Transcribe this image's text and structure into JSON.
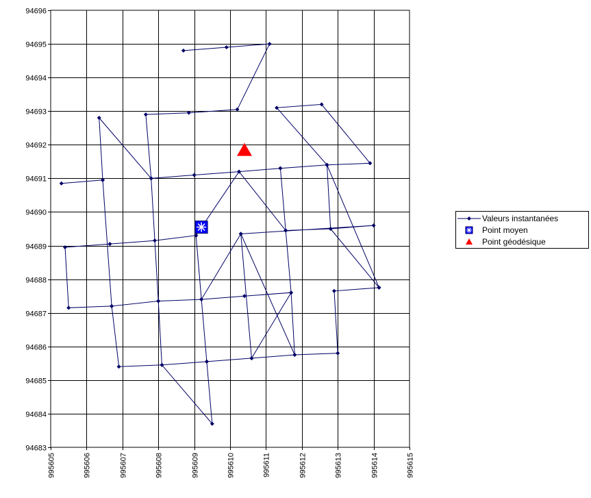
{
  "chart_data": {
    "type": "scatter",
    "title": "",
    "xlabel": "",
    "ylabel": "",
    "xlim": [
      995605,
      995615
    ],
    "ylim": [
      94683,
      94696
    ],
    "grid": true,
    "legend_position": "right",
    "x_ticks": [
      "995605",
      "995606",
      "995607",
      "995608",
      "995609",
      "995610",
      "995611",
      "995612",
      "995613",
      "995614",
      "995615"
    ],
    "y_ticks": [
      "94683",
      "94684",
      "94685",
      "94686",
      "94687",
      "94688",
      "94689",
      "94690",
      "94691",
      "94692",
      "94693",
      "94694",
      "94695",
      "94696"
    ],
    "series": [
      {
        "name": "Valeurs instantanées",
        "color": "#000066",
        "marker": "diamond",
        "points": [
          [
            995608.7,
            94694.8
          ],
          [
            995609.9,
            94694.9
          ],
          [
            995611.1,
            94695.0
          ],
          [
            995610.2,
            94693.05
          ],
          [
            995608.85,
            94692.95
          ],
          [
            995607.65,
            94692.9
          ],
          [
            995607.8,
            94691.0
          ],
          [
            995609.0,
            94691.1
          ],
          [
            995610.25,
            94691.2
          ],
          [
            995611.4,
            94691.3
          ],
          [
            995612.7,
            94691.4
          ],
          [
            995613.9,
            94691.45
          ],
          [
            995612.55,
            94693.2
          ],
          [
            995611.3,
            94693.1
          ],
          [
            995612.7,
            94691.4
          ],
          [
            995614.15,
            94687.75
          ],
          [
            995612.9,
            94687.65
          ],
          [
            995613.0,
            94685.8
          ],
          [
            995611.8,
            94685.75
          ],
          [
            995610.6,
            94685.65
          ],
          [
            995609.35,
            94685.55
          ],
          [
            995608.1,
            94685.45
          ],
          [
            995606.9,
            94685.4
          ],
          [
            995606.7,
            94687.2
          ],
          [
            995608.0,
            94687.35
          ],
          [
            995609.2,
            94687.4
          ],
          [
            995610.4,
            94687.5
          ],
          [
            995611.7,
            94687.6
          ],
          [
            995611.8,
            94685.75
          ],
          [
            995610.3,
            94689.35
          ],
          [
            995610.6,
            94685.65
          ],
          [
            995611.7,
            94687.6
          ],
          [
            995611.55,
            94689.45
          ],
          [
            995612.8,
            94689.5
          ],
          [
            995614.0,
            94689.6
          ],
          [
            995610.3,
            94689.35
          ],
          [
            995609.2,
            94687.4
          ],
          [
            995609.05,
            94689.3
          ],
          [
            995607.9,
            94689.15
          ],
          [
            995606.65,
            94689.05
          ],
          [
            995605.4,
            94688.95
          ],
          [
            995605.5,
            94687.15
          ],
          [
            995606.7,
            94687.2
          ],
          [
            995606.45,
            94690.95
          ],
          [
            995605.3,
            94690.85
          ],
          [
            995606.45,
            94690.95
          ],
          [
            995606.35,
            94692.8
          ],
          [
            995607.8,
            94691.0
          ],
          [
            995608.0,
            94687.35
          ],
          [
            995608.1,
            94685.45
          ],
          [
            995609.5,
            94683.7
          ],
          [
            995609.35,
            94685.55
          ],
          [
            995609.05,
            94689.3
          ],
          [
            995610.25,
            94691.2
          ],
          [
            995611.55,
            94689.45
          ],
          [
            995611.4,
            94691.3
          ],
          [
            995612.7,
            94691.4
          ],
          [
            995612.8,
            94689.5
          ],
          [
            995614.15,
            94687.75
          ]
        ]
      },
      {
        "name": "Point moyen",
        "color": "#0000ff",
        "marker": "square-star",
        "points": [
          [
            995609.2,
            94689.55
          ]
        ]
      },
      {
        "name": "Point géodésique",
        "color": "#ff0000",
        "marker": "triangle",
        "points": [
          [
            995610.4,
            94691.85
          ]
        ]
      }
    ]
  }
}
